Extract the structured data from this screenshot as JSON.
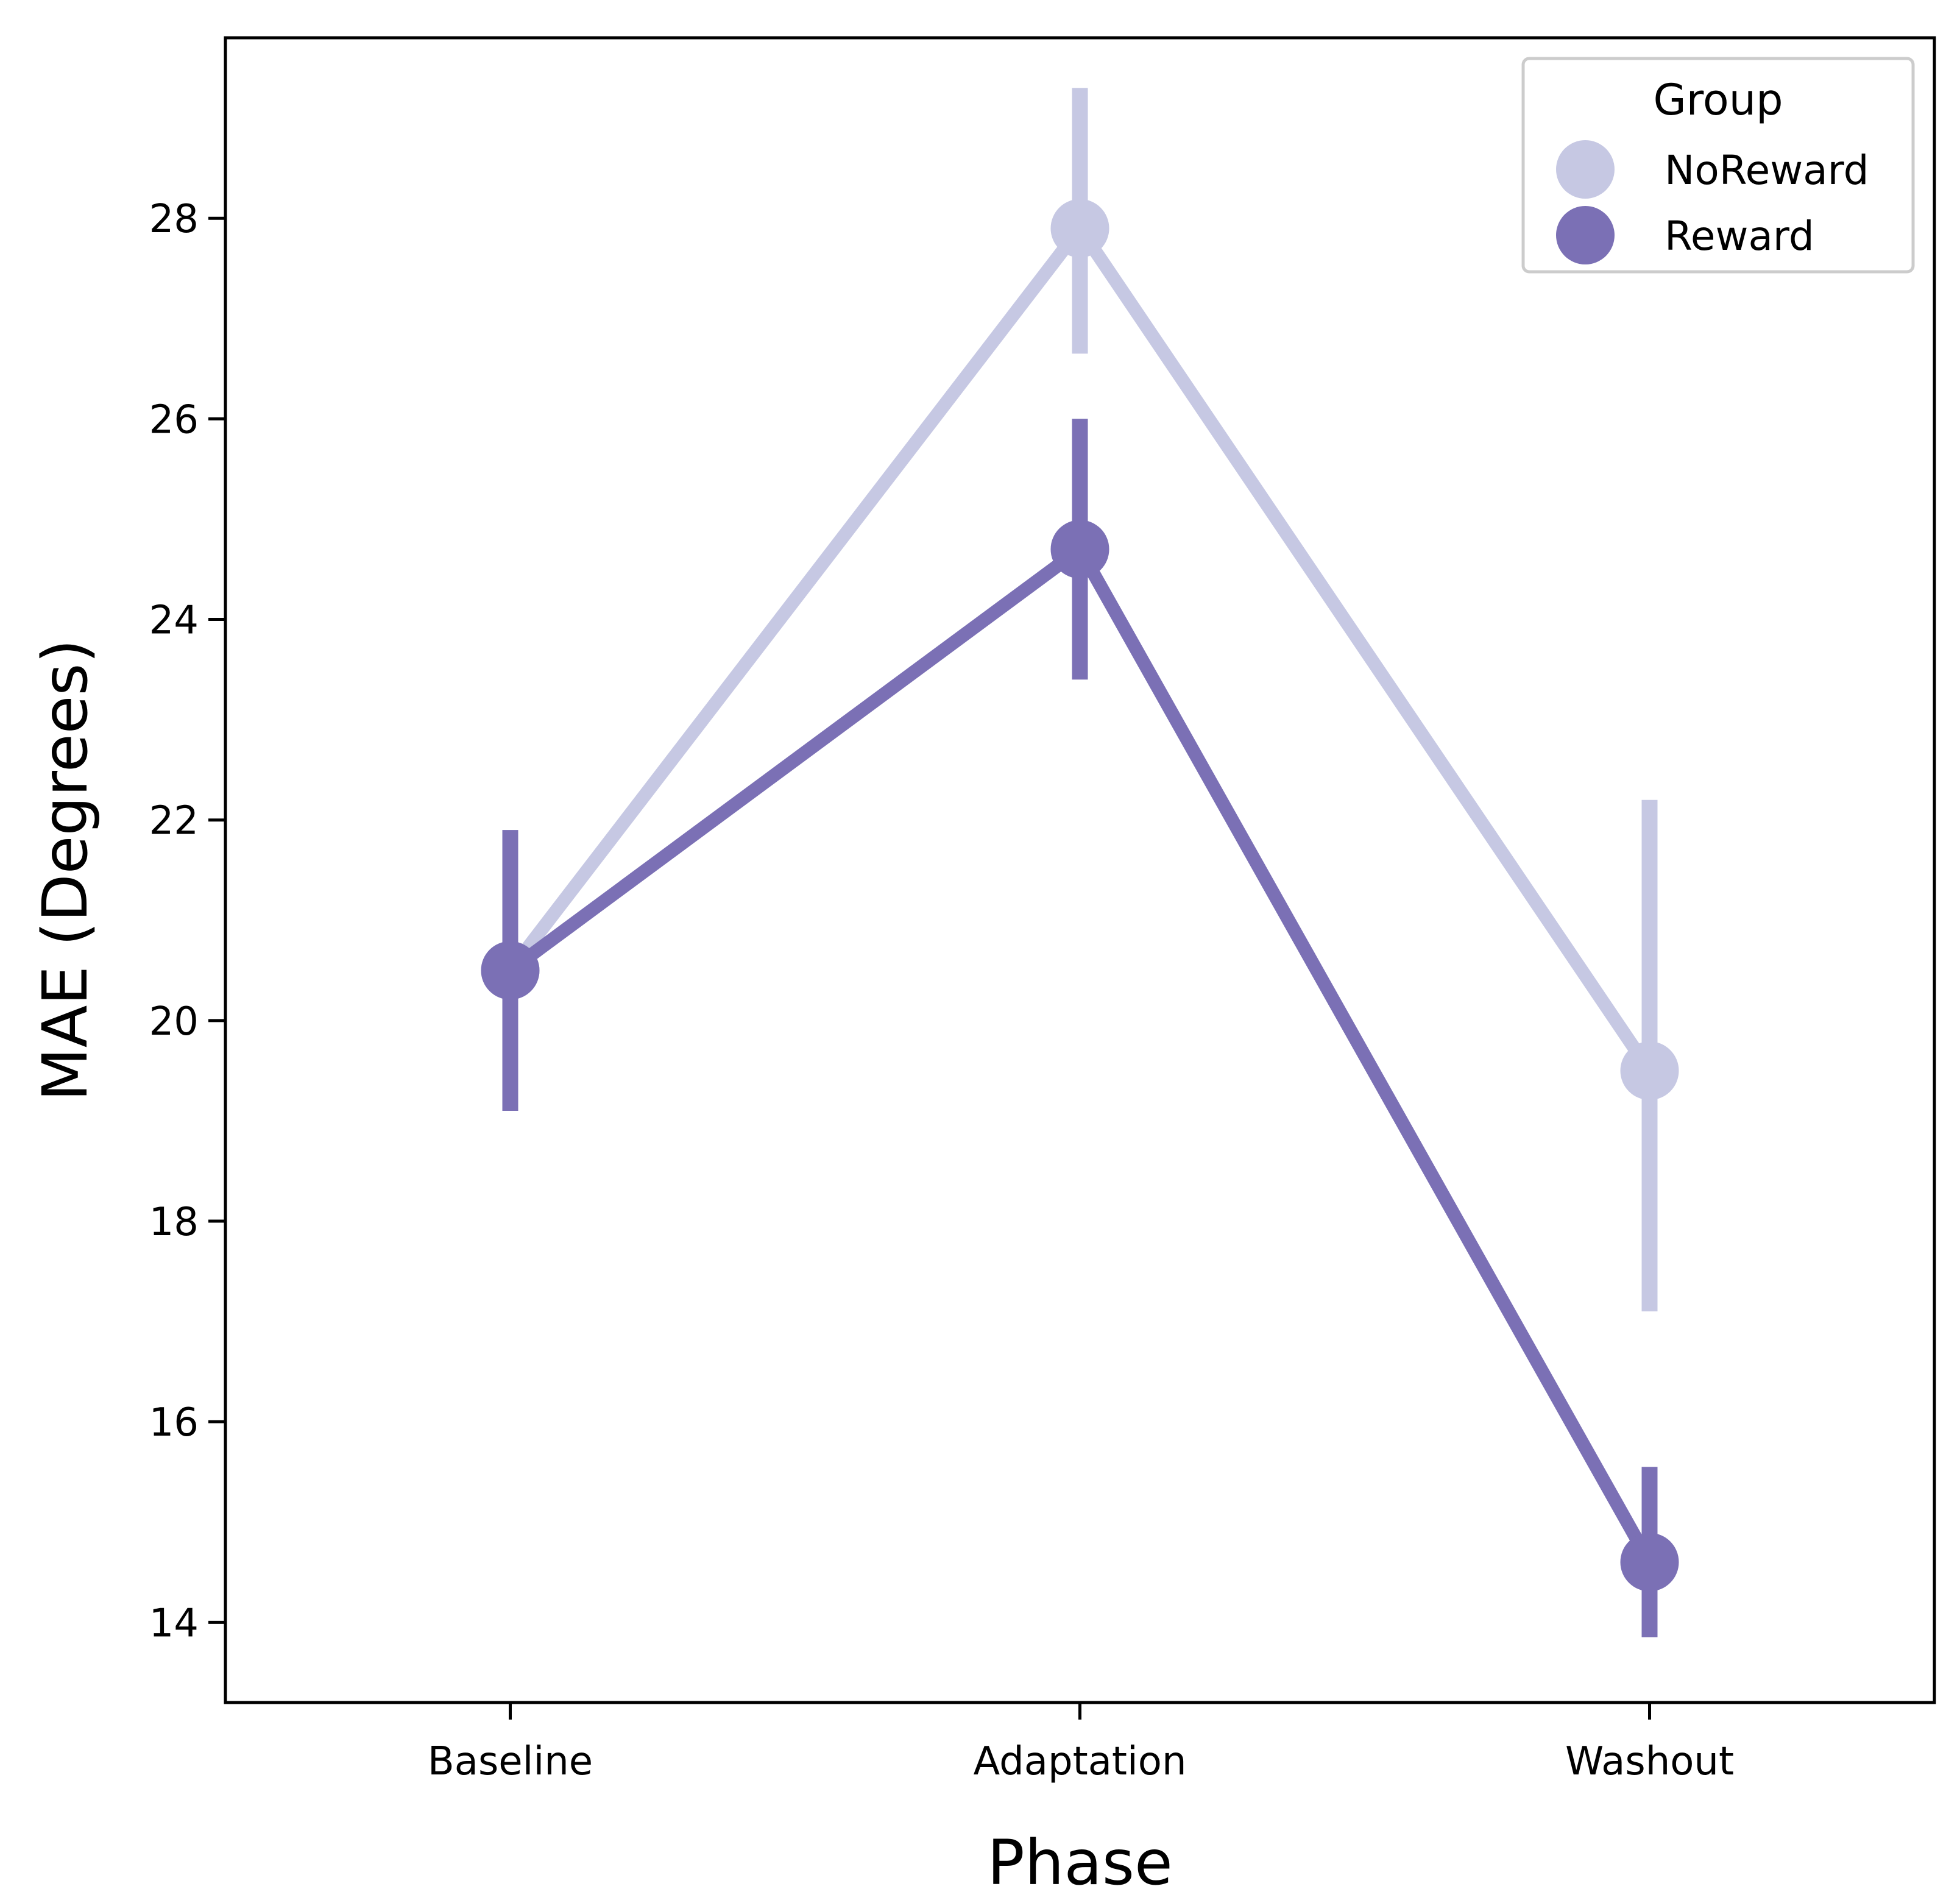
{
  "chart_data": {
    "type": "line",
    "xlabel": "Phase",
    "ylabel": "MAE (Degrees)",
    "categories": [
      "Baseline",
      "Adaptation",
      "Washout"
    ],
    "ylim": [
      13.2,
      29.8
    ],
    "yticks": [
      14,
      16,
      18,
      20,
      22,
      24,
      26,
      28
    ],
    "grid": false,
    "legend": {
      "title": "Group",
      "position": "top-right"
    },
    "series": [
      {
        "name": "NoReward",
        "color": "#c6c8e3",
        "values": [
          20.5,
          27.9,
          19.5
        ],
        "ci_low": [
          19.1,
          26.65,
          17.1
        ],
        "ci_high": [
          21.9,
          29.3,
          22.2
        ]
      },
      {
        "name": "Reward",
        "color": "#7b70b5",
        "values": [
          20.5,
          24.7,
          14.6
        ],
        "ci_low": [
          19.1,
          23.4,
          13.85
        ],
        "ci_high": [
          21.9,
          26.0,
          15.55
        ]
      }
    ]
  }
}
